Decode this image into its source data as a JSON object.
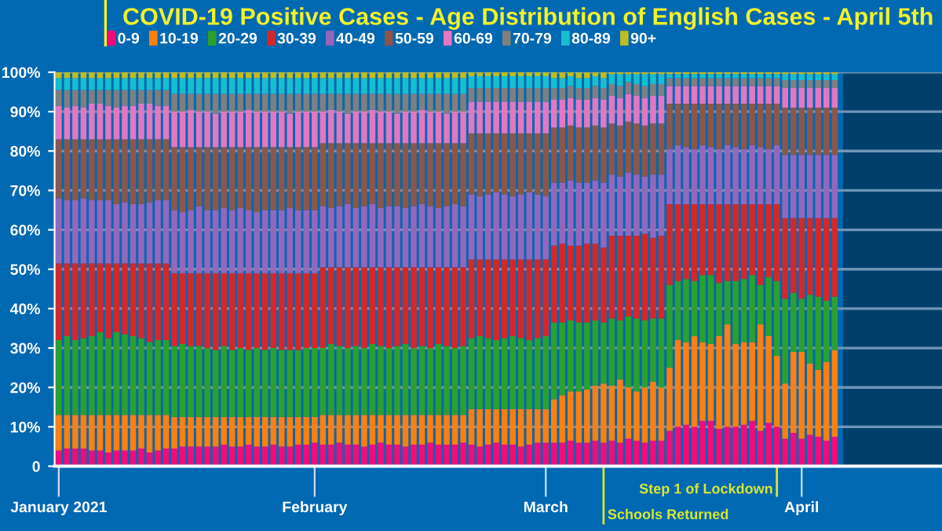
{
  "chart_data": {
    "type": "bar",
    "stacked": true,
    "title": "COVID-19 Positive Cases - Age Distribution of English Cases - April 5th",
    "x": [
      "2021-01-01",
      "2021-01-02",
      "2021-01-03",
      "2021-01-04",
      "2021-01-05",
      "2021-01-06",
      "2021-01-07",
      "2021-01-08",
      "2021-01-09",
      "2021-01-10",
      "2021-01-11",
      "2021-01-12",
      "2021-01-13",
      "2021-01-14",
      "2021-01-15",
      "2021-01-16",
      "2021-01-17",
      "2021-01-18",
      "2021-01-19",
      "2021-01-20",
      "2021-01-21",
      "2021-01-22",
      "2021-01-23",
      "2021-01-24",
      "2021-01-25",
      "2021-01-26",
      "2021-01-27",
      "2021-01-28",
      "2021-01-29",
      "2021-01-30",
      "2021-01-31",
      "2021-02-01",
      "2021-02-02",
      "2021-02-03",
      "2021-02-04",
      "2021-02-05",
      "2021-02-06",
      "2021-02-07",
      "2021-02-08",
      "2021-02-09",
      "2021-02-10",
      "2021-02-11",
      "2021-02-12",
      "2021-02-13",
      "2021-02-14",
      "2021-02-15",
      "2021-02-16",
      "2021-02-17",
      "2021-02-18",
      "2021-02-19",
      "2021-02-20",
      "2021-02-21",
      "2021-02-22",
      "2021-02-23",
      "2021-02-24",
      "2021-02-25",
      "2021-02-26",
      "2021-02-27",
      "2021-02-28",
      "2021-03-01",
      "2021-03-02",
      "2021-03-03",
      "2021-03-04",
      "2021-03-05",
      "2021-03-06",
      "2021-03-07",
      "2021-03-08",
      "2021-03-09",
      "2021-03-10",
      "2021-03-11",
      "2021-03-12",
      "2021-03-13",
      "2021-03-14",
      "2021-03-15",
      "2021-03-16",
      "2021-03-17",
      "2021-03-18",
      "2021-03-19",
      "2021-03-20",
      "2021-03-21",
      "2021-03-22",
      "2021-03-23",
      "2021-03-24",
      "2021-03-25",
      "2021-03-26",
      "2021-03-27",
      "2021-03-28",
      "2021-03-29",
      "2021-03-30",
      "2021-03-31",
      "2021-04-01",
      "2021-04-02",
      "2021-04-03",
      "2021-04-04",
      "2021-04-05"
    ],
    "series": [
      {
        "name": "0-9",
        "color": "#f50a7a",
        "values": [
          4,
          4.5,
          4.5,
          4.5,
          4,
          4,
          3.5,
          4,
          4,
          4,
          4.5,
          3.5,
          4,
          4.5,
          4.5,
          5,
          5,
          5,
          5,
          5,
          5.5,
          5,
          5,
          5.5,
          5,
          5,
          5.5,
          5,
          5,
          5.5,
          5.5,
          6,
          5.5,
          5.5,
          6,
          5.5,
          5.5,
          5,
          5.5,
          6,
          5.5,
          5.5,
          5,
          5.5,
          5.5,
          6,
          5.5,
          5.5,
          5.5,
          6,
          5.5,
          5,
          5.5,
          6,
          5.5,
          5.5,
          5,
          5.5,
          6,
          6,
          6,
          6,
          6.5,
          6,
          6,
          6.5,
          6,
          6.5,
          6,
          7,
          6.5,
          6,
          6.5,
          6.5,
          9,
          10,
          10.5,
          10,
          11.5,
          11.5,
          9.5,
          10,
          10,
          10.5,
          11.5,
          9,
          11,
          10,
          7,
          8.5,
          7,
          8,
          7.5,
          6.5,
          7.5
        ]
      },
      {
        "name": "10-19",
        "color": "#ff7f0e",
        "values": [
          9,
          8.5,
          8.5,
          8.5,
          9,
          9,
          9.5,
          9,
          9,
          9,
          8.5,
          9.5,
          9,
          8.5,
          8,
          7.5,
          7.5,
          7.5,
          7.5,
          7.5,
          7,
          7.5,
          7.5,
          7,
          7.5,
          7.5,
          7,
          7.5,
          7.5,
          7,
          7,
          6.5,
          7.5,
          7.5,
          7,
          7.5,
          7.5,
          8,
          7.5,
          7,
          7.5,
          7.5,
          8,
          7.5,
          7.5,
          7,
          7.5,
          7.5,
          7.5,
          7,
          9,
          9.5,
          9,
          8.5,
          9,
          9,
          9.5,
          9,
          8.5,
          8.5,
          11,
          12,
          12.5,
          13,
          13.5,
          14,
          15,
          14,
          16,
          13,
          12.5,
          14,
          15,
          13.5,
          16,
          22,
          21,
          23,
          20,
          19.5,
          23.5,
          26,
          21,
          21,
          20,
          27,
          22,
          18,
          14,
          20.5,
          22,
          18,
          17,
          20,
          22
        ]
      },
      {
        "name": "20-29",
        "color": "#2ca02c",
        "values": [
          19,
          20,
          19,
          19.5,
          20,
          21,
          19.5,
          21,
          20.5,
          20,
          19.5,
          18.5,
          19,
          19,
          18,
          18.5,
          18,
          18,
          17.5,
          17,
          18,
          17,
          17.5,
          17,
          17.5,
          17,
          17.5,
          17,
          17,
          17,
          17.5,
          17.5,
          17,
          18,
          17.5,
          17,
          17.5,
          17,
          18,
          17.5,
          17,
          17.5,
          18,
          17,
          17.5,
          17,
          18,
          17.5,
          17,
          17.5,
          18,
          18.5,
          18,
          17.5,
          18,
          18.5,
          18,
          17.5,
          18,
          18.5,
          19.5,
          18.5,
          18,
          17.5,
          17,
          16.5,
          15.5,
          17,
          15,
          18,
          18.5,
          17,
          16,
          17.5,
          21,
          15,
          16,
          14,
          17,
          17.5,
          13.5,
          11,
          16,
          16,
          17,
          10,
          15,
          19,
          21.5,
          15,
          13.5,
          17.5,
          18.5,
          15.5,
          13.5
        ]
      },
      {
        "name": "30-39",
        "color": "#d62728",
        "values": [
          19.5,
          18.5,
          19.5,
          19,
          18.5,
          17.5,
          19,
          17.5,
          18,
          18.5,
          19,
          20,
          19.5,
          19.5,
          18.5,
          18,
          18.5,
          18.5,
          19,
          19.5,
          18.5,
          19.5,
          19,
          19.5,
          19,
          19.5,
          19,
          19.5,
          19.5,
          19.5,
          19,
          19,
          20.5,
          19.5,
          20,
          20.5,
          20,
          20.5,
          19.5,
          20,
          20.5,
          20,
          19.5,
          20.5,
          20,
          20.5,
          19.5,
          20,
          20.5,
          20,
          20,
          19.5,
          20,
          20.5,
          20,
          19.5,
          20,
          20.5,
          20,
          19.5,
          19.5,
          20,
          19,
          19.5,
          20,
          19.5,
          19,
          21,
          21.5,
          20.5,
          21,
          22,
          20.5,
          21,
          20.5,
          19.5,
          19,
          19.5,
          18,
          18,
          20,
          19.5,
          19.5,
          19,
          18,
          20.5,
          18.5,
          19.5,
          20.5,
          19,
          20.5,
          19.5,
          20,
          21,
          20
        ]
      },
      {
        "name": "40-49",
        "color": "#9467bd",
        "values": [
          16.5,
          16,
          16,
          16.5,
          16,
          16,
          16,
          15,
          15.5,
          15,
          15,
          15.5,
          16,
          16,
          16,
          15.5,
          16,
          17,
          16,
          16,
          16.5,
          16,
          16.5,
          16,
          15.5,
          16,
          16,
          16,
          16.5,
          16,
          16,
          16,
          15.5,
          15,
          15.5,
          16,
          15,
          15.5,
          16,
          15,
          15.5,
          15.5,
          15,
          15.5,
          16,
          15.5,
          15,
          15.5,
          16,
          15.5,
          16.5,
          16,
          16.5,
          17,
          16.5,
          16,
          16.5,
          17,
          16.5,
          16,
          16,
          15.5,
          16.5,
          16,
          15.5,
          16,
          16.5,
          15.5,
          15,
          16,
          15.5,
          14.5,
          16,
          15.5,
          14,
          15,
          14.5,
          14,
          15,
          14.5,
          14,
          15,
          14.5,
          14,
          15,
          14.5,
          14,
          15,
          16,
          16,
          16,
          16,
          16,
          16,
          16
        ]
      },
      {
        "name": "50-59",
        "color": "#8c564b",
        "values": [
          15,
          15.5,
          15.5,
          15,
          15.5,
          15.5,
          15.5,
          16.5,
          16,
          16.5,
          16.5,
          16,
          15.5,
          15.5,
          16,
          16.5,
          16,
          15,
          16,
          16,
          15.5,
          16,
          15.5,
          16,
          16.5,
          16,
          16,
          16,
          15.5,
          16,
          16,
          16,
          16,
          16.5,
          16,
          15.5,
          16.5,
          16,
          15.5,
          16.5,
          16,
          16,
          16.5,
          16,
          15.5,
          16,
          16.5,
          16,
          15.5,
          16,
          15.5,
          16,
          15.5,
          15,
          15.5,
          16,
          15.5,
          15,
          15.5,
          16,
          14,
          14,
          14,
          14,
          14,
          14,
          14,
          13,
          13,
          13,
          13,
          13,
          13,
          13,
          11.5,
          10.5,
          11,
          11.5,
          10.5,
          11,
          11.5,
          10.5,
          11,
          11.5,
          10.5,
          11,
          11.5,
          10.5,
          12,
          12,
          12,
          12,
          12,
          12,
          12
        ]
      },
      {
        "name": "60-69",
        "color": "#e377c2",
        "values": [
          8.5,
          8,
          8.5,
          8,
          9,
          9,
          8.5,
          8,
          8.5,
          8.5,
          9,
          9,
          8.5,
          8.5,
          9,
          9,
          9.5,
          9,
          9,
          8.5,
          9,
          9,
          9,
          9.5,
          9,
          9,
          9,
          9,
          8.5,
          9,
          9,
          9,
          8,
          8.5,
          8,
          7.5,
          8,
          8,
          8.5,
          8,
          8,
          7.5,
          8,
          8,
          8.5,
          8,
          8,
          7.5,
          8,
          8,
          8,
          8,
          8,
          8,
          8,
          8,
          8,
          8,
          8,
          8,
          7,
          7,
          7,
          7,
          7,
          7,
          7,
          7,
          7,
          7,
          7,
          7,
          7,
          7,
          4.5,
          4.5,
          4.5,
          4.5,
          4.5,
          4.5,
          4.5,
          4.5,
          4.5,
          4.5,
          4.5,
          4.5,
          4.5,
          4.5,
          5,
          5,
          5,
          5,
          5,
          5,
          5
        ]
      },
      {
        "name": "70-79",
        "color": "#7f7f7f",
        "values": [
          4,
          4.5,
          4,
          4.5,
          3.5,
          3.5,
          4,
          4.5,
          4,
          4,
          3.5,
          3.5,
          4,
          4,
          4.5,
          4.5,
          4,
          4.5,
          4.5,
          5,
          4.5,
          4.5,
          4.5,
          4,
          4.5,
          4.5,
          4.5,
          4.5,
          5,
          4.5,
          4.5,
          4.5,
          4.5,
          4,
          4.5,
          5,
          4.5,
          4.5,
          4,
          4.5,
          4.5,
          5,
          4.5,
          4.5,
          4,
          4.5,
          4.5,
          5,
          4.5,
          4.5,
          3.5,
          3.5,
          3.5,
          3.5,
          3.5,
          3.5,
          3.5,
          3.5,
          3.5,
          3.5,
          3,
          3,
          3,
          3,
          3,
          3,
          3,
          3,
          3,
          3,
          3,
          3,
          3,
          3,
          2,
          2,
          2,
          2,
          2,
          2,
          2,
          2,
          2,
          2,
          2,
          2,
          2,
          2,
          2,
          2,
          2,
          2,
          2,
          2,
          2
        ]
      },
      {
        "name": "80-89",
        "color": "#17becf",
        "values": [
          3,
          3,
          3,
          3,
          3,
          3,
          3,
          3,
          3,
          3,
          3,
          3,
          3,
          3,
          4,
          4,
          4,
          4,
          4,
          4,
          4,
          4,
          4,
          4,
          4,
          4,
          4,
          4,
          4,
          4,
          4,
          4,
          4,
          4,
          4,
          4,
          4,
          4,
          4,
          4,
          4,
          4,
          4,
          4,
          4,
          4,
          4,
          4,
          4,
          4,
          3,
          3,
          3,
          3,
          3,
          3,
          3,
          3,
          3,
          3,
          2.5,
          2.5,
          2.5,
          2.5,
          2.5,
          2.5,
          2.5,
          2.5,
          3,
          2,
          2.5,
          3,
          2.5,
          2.5,
          1,
          1,
          1,
          1,
          1,
          1,
          1,
          1,
          1,
          1,
          1,
          1,
          1,
          1,
          1.5,
          1.5,
          1.5,
          1.5,
          1.5,
          1.5,
          1.5
        ]
      },
      {
        "name": "90+",
        "color": "#bcbd22",
        "values": [
          1.5,
          1.5,
          1.5,
          1.5,
          1.5,
          1.5,
          1.5,
          1.5,
          1.5,
          1.5,
          1.5,
          1.5,
          1.5,
          1.5,
          1.5,
          1.5,
          1.5,
          1.5,
          1.5,
          1.5,
          1.5,
          1.5,
          1.5,
          1.5,
          1.5,
          1.5,
          1.5,
          1.5,
          1.5,
          1.5,
          1.5,
          1.5,
          1.5,
          1.5,
          1.5,
          1.5,
          1.5,
          1.5,
          1.5,
          1.5,
          1.5,
          1.5,
          1.5,
          1.5,
          1.5,
          1.5,
          1.5,
          1.5,
          1.5,
          1.5,
          1,
          1,
          1,
          1,
          1,
          1,
          1,
          1,
          1,
          1,
          1.5,
          1.5,
          1,
          1.5,
          1.5,
          1,
          1.5,
          0.5,
          0.5,
          0.5,
          0.5,
          0.5,
          0.5,
          0.5,
          0.5,
          0.5,
          0.5,
          0.5,
          0.5,
          0.5,
          0.5,
          0.5,
          0.5,
          0.5,
          0.5,
          0.5,
          0.5,
          0.5,
          0.5,
          0.5,
          0.5,
          0.5,
          0.5,
          0.5,
          0.5
        ]
      }
    ],
    "xlim": [
      "2020-12-31T12:00",
      "2021-04-18"
    ],
    "xticks": [
      {
        "value": "2021-01-01",
        "label": "January 2021"
      },
      {
        "value": "2021-02-01",
        "label": "February"
      },
      {
        "value": "2021-03-01",
        "label": "March"
      },
      {
        "value": "2021-04-01",
        "label": "April"
      }
    ],
    "ylim": [
      0,
      100
    ],
    "yticks": [
      {
        "value": 0,
        "label": "0"
      },
      {
        "value": 10,
        "label": "10%"
      },
      {
        "value": 20,
        "label": "20%"
      },
      {
        "value": 30,
        "label": "30%"
      },
      {
        "value": 40,
        "label": "40%"
      },
      {
        "value": 50,
        "label": "50%"
      },
      {
        "value": 60,
        "label": "60%"
      },
      {
        "value": 70,
        "label": "70%"
      },
      {
        "value": 80,
        "label": "80%"
      },
      {
        "value": 90,
        "label": "90%"
      },
      {
        "value": 100,
        "label": "100%"
      }
    ],
    "ref_lines": [
      {
        "axis": "x",
        "value": "2021-03-08",
        "label": "Schools Returned",
        "color": "#d8e832"
      },
      {
        "axis": "x",
        "value": "2021-03-29",
        "label": "Step 1 of Lockdown",
        "color": "#d8e832"
      }
    ],
    "bands": [
      {
        "axis": "x",
        "from": "2021-04-06",
        "to": "2021-04-18",
        "color": "#003f6b"
      }
    ],
    "grid": "y",
    "legend": "top left"
  }
}
